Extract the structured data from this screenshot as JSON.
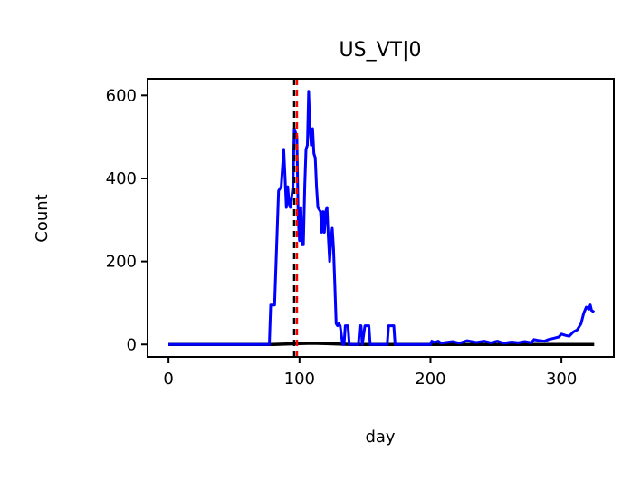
{
  "chart_data": {
    "type": "line",
    "title": "US_VT|0",
    "xlabel": "day",
    "ylabel": "Count",
    "xlim": [
      -16,
      340
    ],
    "ylim": [
      -30,
      640
    ],
    "xticks": [
      0,
      100,
      200,
      300
    ],
    "yticks": [
      0,
      200,
      400,
      600
    ],
    "xtick_labels": [
      "0",
      "100",
      "200",
      "300"
    ],
    "ytick_labels": [
      "0",
      "200",
      "400",
      "600"
    ],
    "grid": false,
    "legend": "none",
    "series": [
      {
        "color": "#0000ff",
        "x": [
          0,
          77,
          78,
          81,
          84,
          86,
          88,
          89,
          90,
          91,
          92,
          93,
          95,
          96,
          98,
          99,
          100,
          101,
          102,
          103,
          104,
          105,
          106,
          107,
          108,
          109,
          110,
          111,
          112,
          113,
          114,
          116,
          117,
          118,
          119,
          120,
          121,
          122,
          123,
          124,
          125,
          126,
          127,
          128,
          129,
          130,
          131,
          133,
          134,
          135,
          136,
          137,
          138,
          139,
          140,
          141,
          142,
          143,
          145,
          146,
          147,
          148,
          150,
          152,
          153,
          154,
          155,
          167,
          168,
          169,
          170,
          172,
          173,
          174,
          200,
          201,
          203,
          206,
          208,
          212,
          217,
          222,
          228,
          235,
          241,
          246,
          251,
          256,
          262,
          267,
          272,
          277,
          279,
          282,
          287,
          290,
          294,
          298,
          300,
          303,
          306,
          309,
          312,
          315,
          317,
          319,
          321,
          322,
          323,
          324,
          325
        ],
        "values": [
          0,
          0,
          95,
          95,
          370,
          380,
          470,
          400,
          330,
          380,
          340,
          330,
          380,
          520,
          500,
          300,
          250,
          330,
          240,
          240,
          380,
          470,
          480,
          610,
          520,
          480,
          520,
          460,
          450,
          380,
          330,
          320,
          270,
          320,
          270,
          320,
          330,
          260,
          200,
          250,
          280,
          230,
          140,
          50,
          45,
          50,
          45,
          0,
          0,
          45,
          45,
          45,
          0,
          0,
          0,
          0,
          0,
          0,
          0,
          45,
          45,
          0,
          45,
          45,
          45,
          0,
          0,
          0,
          45,
          45,
          45,
          45,
          0,
          0,
          0,
          8,
          5,
          8,
          3,
          5,
          7,
          3,
          9,
          5,
          8,
          4,
          8,
          3,
          6,
          4,
          7,
          4,
          12,
          10,
          8,
          12,
          15,
          18,
          25,
          22,
          20,
          30,
          35,
          50,
          75,
          90,
          85,
          95,
          82,
          80,
          78
        ]
      },
      {
        "color": "#000000",
        "x": [
          0,
          80,
          90,
          100,
          110,
          120,
          130,
          140,
          150,
          200,
          250,
          300,
          325
        ],
        "values": [
          0,
          0,
          1,
          2,
          3,
          2,
          1,
          0,
          0,
          0,
          0,
          0,
          0
        ]
      }
    ],
    "vlines": [
      {
        "x": 97,
        "color": "#ff0000",
        "style": "dashed"
      },
      {
        "x": 97,
        "color": "#000000",
        "style": "dashed"
      }
    ]
  }
}
